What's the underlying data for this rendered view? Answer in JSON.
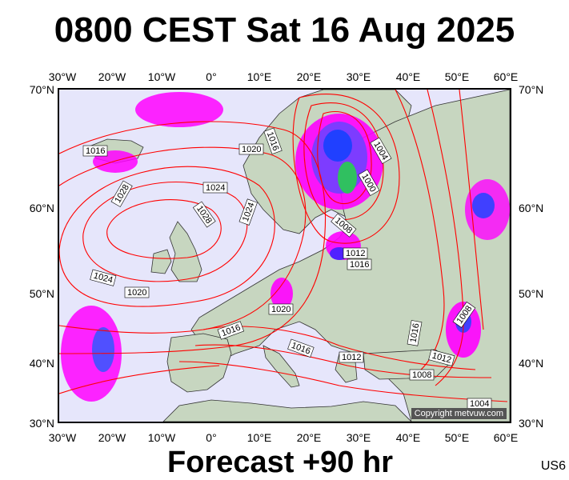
{
  "header": {
    "title": "0800 CEST Sat 16 Aug 2025"
  },
  "footer": {
    "forecast_label": "Forecast +90 hr",
    "model_code": "US6"
  },
  "map": {
    "copyright": "Copyright metvuw.com",
    "lon_ticks": [
      "30°W",
      "20°W",
      "10°W",
      "0°",
      "10°E",
      "20°E",
      "30°E",
      "40°E",
      "50°E",
      "60°E"
    ],
    "lat_ticks": [
      "70°N",
      "60°N",
      "50°N",
      "40°N",
      "30°N"
    ],
    "isobar_labels": [
      "1016",
      "1020",
      "1016",
      "1004",
      "1000",
      "1024",
      "1028",
      "1028",
      "1024",
      "1008",
      "1012",
      "1016",
      "1024",
      "1020",
      "1020",
      "1016",
      "1016",
      "1016",
      "1012",
      "1008",
      "1012",
      "1008",
      "1004"
    ],
    "colors": {
      "ocean": "#e6e6fb",
      "land": "#c7d6c0",
      "isobar": "#ff0000",
      "precip_light": "#ff00ff",
      "precip_heavy": "#2020ff"
    }
  }
}
